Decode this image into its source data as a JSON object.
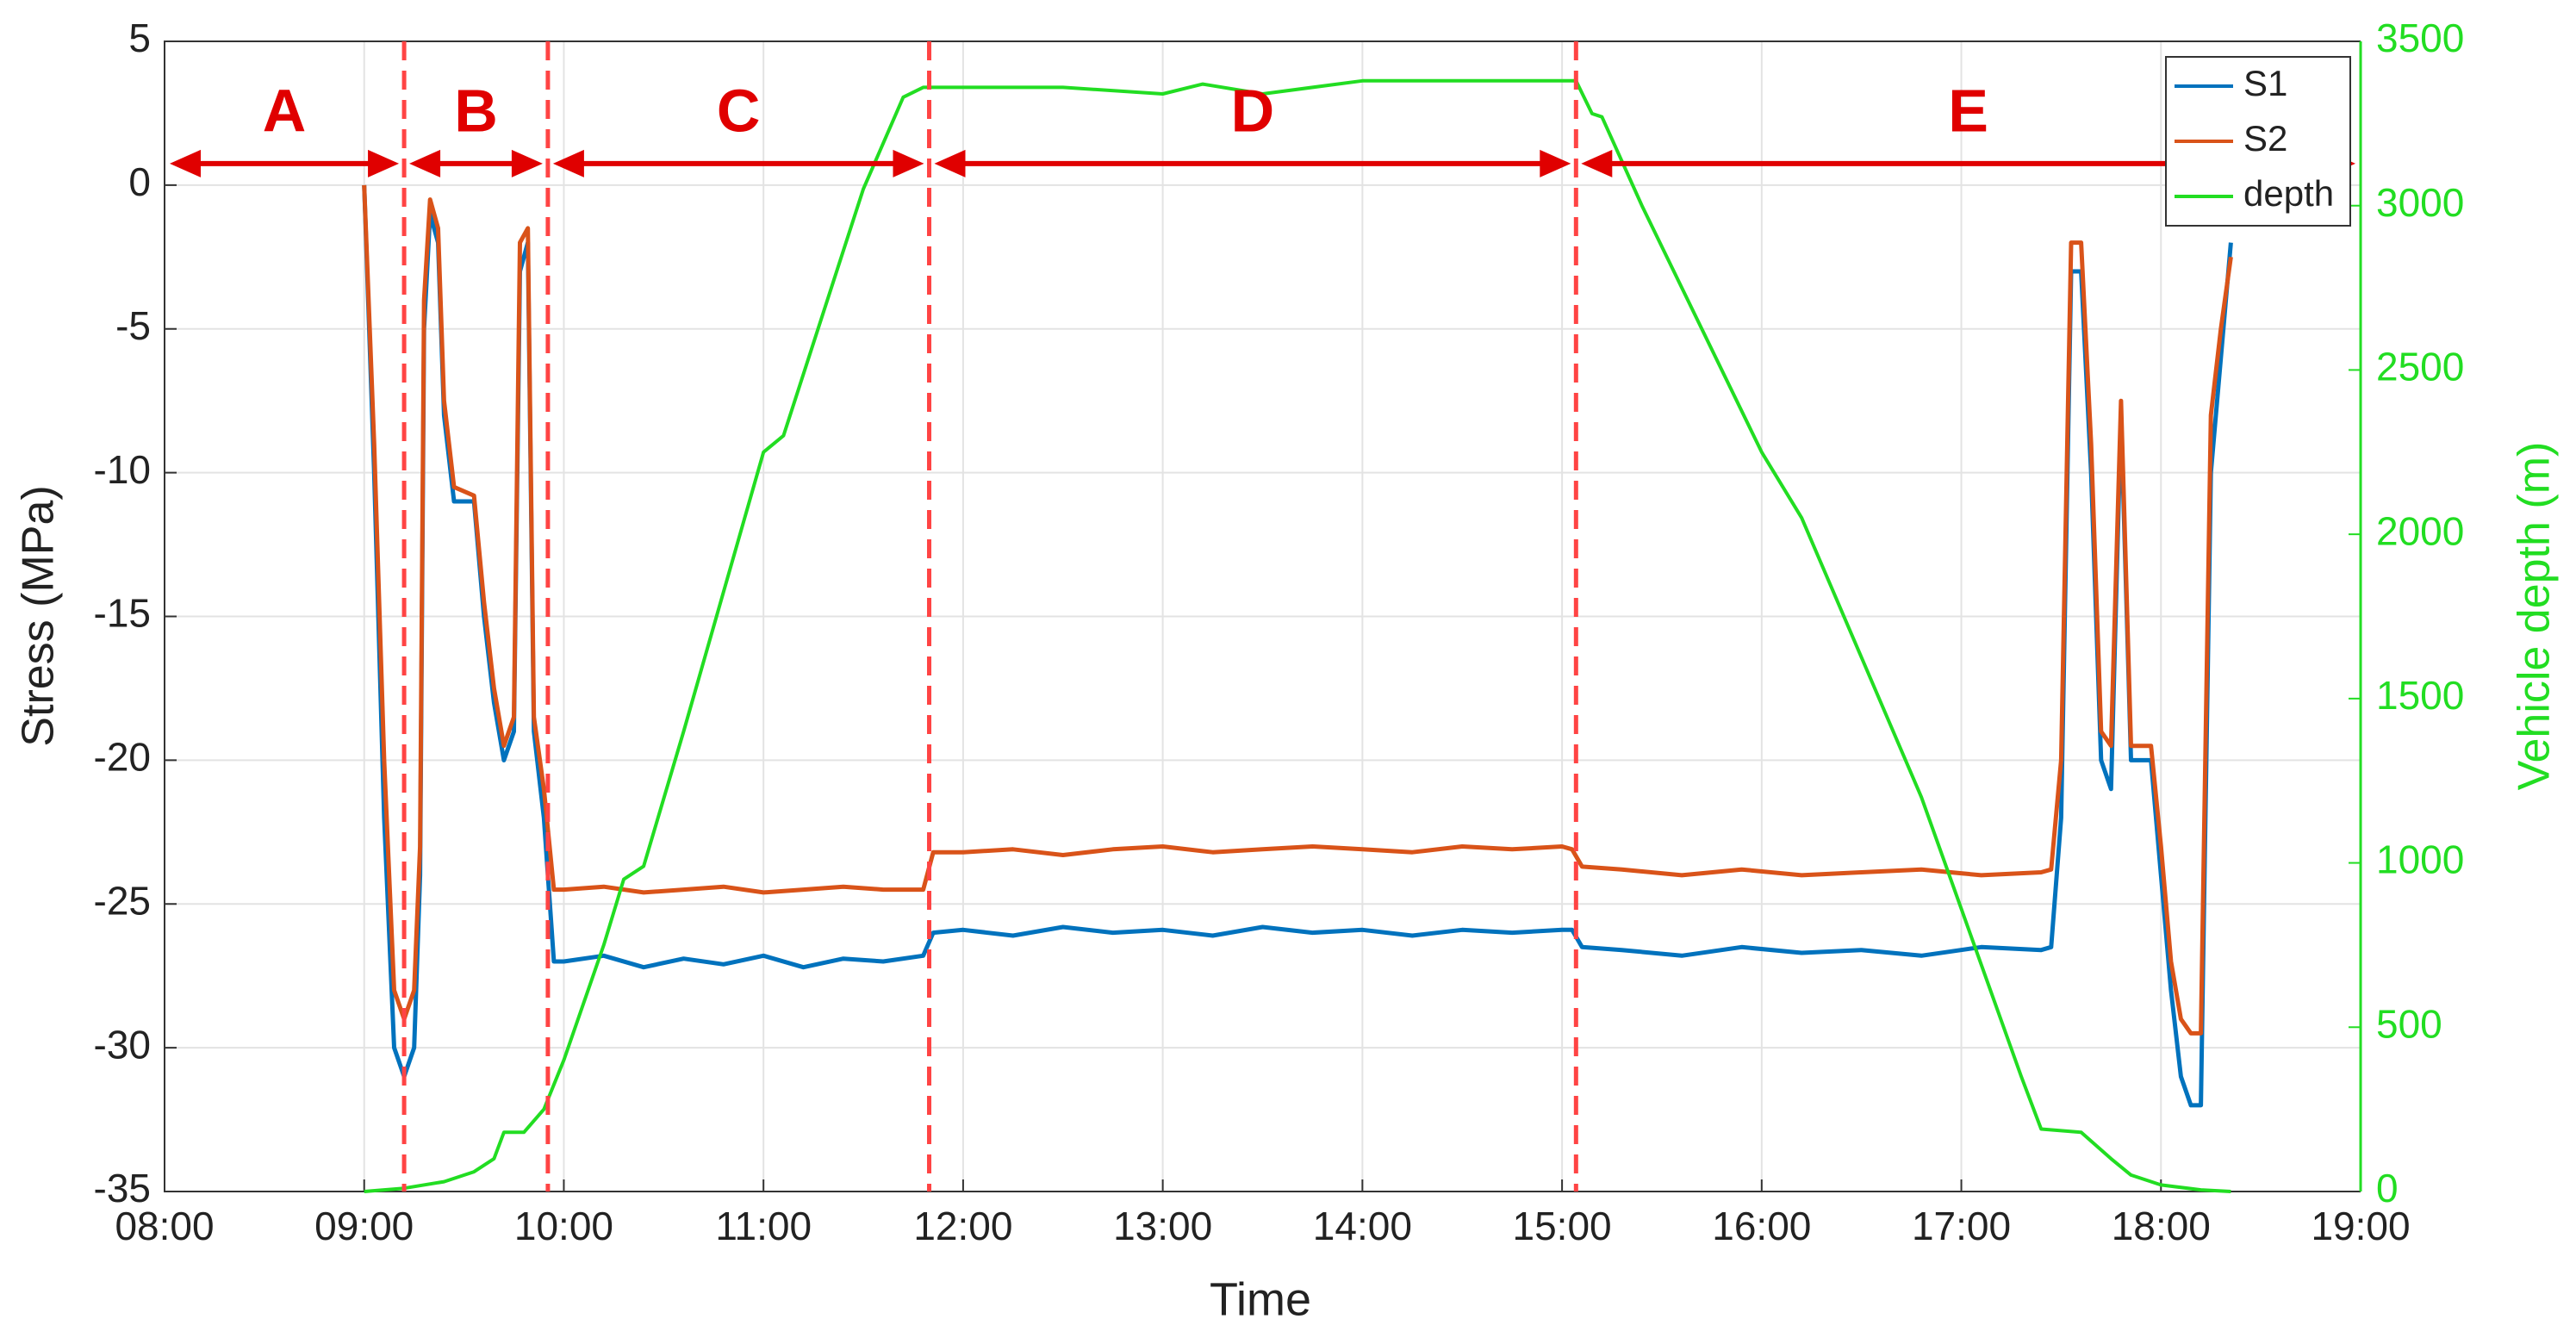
{
  "chart_data": {
    "type": "line",
    "x_label": "Time",
    "y_label": "Stress (MPa)",
    "y2_label": "Vehicle depth (m)",
    "xlim": [
      8,
      19
    ],
    "xticks": [
      {
        "value": 8,
        "label": "08:00"
      },
      {
        "value": 9,
        "label": "09:00"
      },
      {
        "value": 10,
        "label": "10:00"
      },
      {
        "value": 11,
        "label": "11:00"
      },
      {
        "value": 12,
        "label": "12:00"
      },
      {
        "value": 13,
        "label": "13:00"
      },
      {
        "value": 14,
        "label": "14:00"
      },
      {
        "value": 15,
        "label": "15:00"
      },
      {
        "value": 16,
        "label": "16:00"
      },
      {
        "value": 17,
        "label": "17:00"
      },
      {
        "value": 18,
        "label": "18:00"
      },
      {
        "value": 19,
        "label": "19:00"
      }
    ],
    "ylim": [
      -35,
      5
    ],
    "yticks": [
      -35,
      -30,
      -25,
      -20,
      -15,
      -10,
      -5,
      0,
      5
    ],
    "y2lim": [
      0,
      3500
    ],
    "y2ticks": [
      0,
      500,
      1000,
      1500,
      2000,
      2500,
      3000,
      3500
    ],
    "y2_color": "#22dd22",
    "grid": true,
    "legend": "upper right",
    "region_color": "#e00000",
    "divider_color": "#ff4444",
    "regions": [
      {
        "label": "A",
        "start": 8,
        "end": 9.2
      },
      {
        "label": "B",
        "start": 9.2,
        "end": 9.92
      },
      {
        "label": "C",
        "start": 9.92,
        "end": 11.83
      },
      {
        "label": "D",
        "start": 11.83,
        "end": 15.07
      },
      {
        "label": "E",
        "start": 15.07,
        "end": 19
      }
    ],
    "series": [
      {
        "name": "S1",
        "color": "#0072bd",
        "x": [
          9.0,
          9.05,
          9.1,
          9.15,
          9.2,
          9.25,
          9.28,
          9.3,
          9.33,
          9.37,
          9.4,
          9.45,
          9.55,
          9.6,
          9.65,
          9.7,
          9.75,
          9.78,
          9.82,
          9.85,
          9.9,
          9.95,
          10.0,
          10.2,
          10.4,
          10.6,
          10.8,
          11.0,
          11.2,
          11.4,
          11.6,
          11.8,
          11.85,
          12.0,
          12.25,
          12.5,
          12.75,
          13.0,
          13.25,
          13.5,
          13.75,
          14.0,
          14.25,
          14.5,
          14.75,
          15.0,
          15.05,
          15.1,
          15.3,
          15.6,
          15.9,
          16.2,
          16.5,
          16.8,
          17.1,
          17.4,
          17.45,
          17.5,
          17.55,
          17.6,
          17.65,
          17.7,
          17.75,
          17.8,
          17.85,
          17.95,
          18.0,
          18.05,
          18.1,
          18.15,
          18.2,
          18.25,
          18.3,
          18.35
        ],
        "values": [
          0,
          -10,
          -22,
          -30,
          -31,
          -30,
          -24,
          -5,
          -1,
          -2,
          -8,
          -11,
          -11,
          -15,
          -18,
          -20,
          -19,
          -3,
          -2,
          -19,
          -22,
          -27,
          -27,
          -26.8,
          -27.2,
          -26.9,
          -27.1,
          -26.8,
          -27.2,
          -26.9,
          -27,
          -26.8,
          -26,
          -25.9,
          -26.1,
          -25.8,
          -26,
          -25.9,
          -26.1,
          -25.8,
          -26,
          -25.9,
          -26.1,
          -25.9,
          -26,
          -25.9,
          -25.9,
          -26.5,
          -26.6,
          -26.8,
          -26.5,
          -26.7,
          -26.6,
          -26.8,
          -26.5,
          -26.6,
          -26.5,
          -22,
          -3,
          -3,
          -10,
          -20,
          -21,
          -8,
          -20,
          -20,
          -24,
          -28,
          -31,
          -32,
          -32,
          -10,
          -6,
          -2
        ]
      },
      {
        "name": "S2",
        "color": "#d95319",
        "x": [
          9.0,
          9.05,
          9.1,
          9.15,
          9.2,
          9.25,
          9.28,
          9.3,
          9.33,
          9.37,
          9.4,
          9.45,
          9.55,
          9.6,
          9.65,
          9.7,
          9.75,
          9.78,
          9.82,
          9.85,
          9.9,
          9.95,
          10.0,
          10.2,
          10.4,
          10.6,
          10.8,
          11.0,
          11.2,
          11.4,
          11.6,
          11.8,
          11.85,
          12.0,
          12.25,
          12.5,
          12.75,
          13.0,
          13.25,
          13.5,
          13.75,
          14.0,
          14.25,
          14.5,
          14.75,
          15.0,
          15.05,
          15.1,
          15.3,
          15.6,
          15.9,
          16.2,
          16.5,
          16.8,
          17.1,
          17.4,
          17.45,
          17.5,
          17.55,
          17.6,
          17.65,
          17.7,
          17.75,
          17.8,
          17.85,
          17.95,
          18.0,
          18.05,
          18.1,
          18.15,
          18.2,
          18.25,
          18.3,
          18.35
        ],
        "values": [
          0,
          -9,
          -20,
          -28,
          -29,
          -28,
          -23,
          -4,
          -0.5,
          -1.5,
          -7.5,
          -10.5,
          -10.8,
          -14.5,
          -17.5,
          -19.5,
          -18.5,
          -2,
          -1.5,
          -18.5,
          -21,
          -24.5,
          -24.5,
          -24.4,
          -24.6,
          -24.5,
          -24.4,
          -24.6,
          -24.5,
          -24.4,
          -24.5,
          -24.5,
          -23.2,
          -23.2,
          -23.1,
          -23.3,
          -23.1,
          -23,
          -23.2,
          -23.1,
          -23,
          -23.1,
          -23.2,
          -23,
          -23.1,
          -23,
          -23.1,
          -23.7,
          -23.8,
          -24,
          -23.8,
          -24,
          -23.9,
          -23.8,
          -24,
          -23.9,
          -23.8,
          -20,
          -2,
          -2,
          -9,
          -19,
          -19.5,
          -7.5,
          -19.5,
          -19.5,
          -23,
          -27,
          -29,
          -29.5,
          -29.5,
          -8,
          -5,
          -2.5
        ]
      },
      {
        "name": "depth",
        "color": "#22dd22",
        "axis": "y2",
        "x": [
          9.0,
          9.2,
          9.4,
          9.55,
          9.65,
          9.7,
          9.8,
          9.9,
          10.0,
          10.2,
          10.3,
          10.4,
          10.6,
          11.0,
          11.1,
          11.5,
          11.7,
          11.8,
          12.5,
          13.0,
          13.2,
          13.5,
          14.0,
          15.0,
          15.07,
          15.15,
          15.2,
          15.4,
          16.0,
          16.2,
          16.8,
          17.3,
          17.4,
          17.6,
          17.75,
          17.85,
          18.0,
          18.2,
          18.35
        ],
        "values": [
          0,
          10,
          30,
          60,
          100,
          180,
          180,
          250,
          400,
          750,
          950,
          990,
          1400,
          2250,
          2300,
          3050,
          3330,
          3360,
          3360,
          3340,
          3370,
          3340,
          3380,
          3380,
          3380,
          3280,
          3270,
          3000,
          2250,
          2050,
          1200,
          350,
          190,
          180,
          100,
          50,
          20,
          5,
          0
        ]
      }
    ]
  }
}
